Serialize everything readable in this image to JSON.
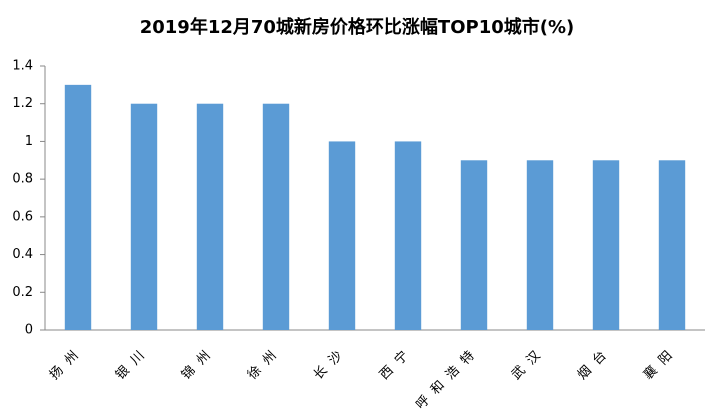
{
  "chart_data": {
    "type": "bar",
    "title": "2019年12月70城新房价格环比涨幅TOP10城市(%)",
    "categories": [
      "扬州",
      "银川",
      "锦州",
      "徐州",
      "长沙",
      "西宁",
      "呼和浩特",
      "武汉",
      "烟台",
      "襄阳"
    ],
    "values": [
      1.3,
      1.2,
      1.2,
      1.2,
      1.0,
      1.0,
      0.9,
      0.9,
      0.9,
      0.9
    ],
    "color": "#5b9bd5",
    "ylim": [
      0,
      1.4
    ],
    "yticks": [
      0,
      0.2,
      0.4,
      0.6,
      0.8,
      1,
      1.2,
      1.4
    ],
    "grid": false
  }
}
